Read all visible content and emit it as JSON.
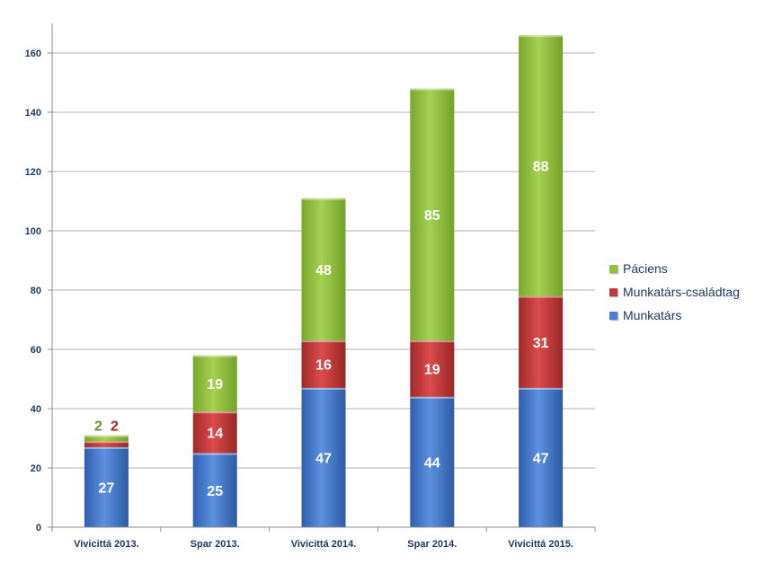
{
  "chart_data": {
    "type": "bar",
    "stacked": true,
    "categories": [
      "Vivicittá 2013.",
      "Spar 2013.",
      "Vivicittá 2014.",
      "Spar 2014.",
      "Vivicittá 2015."
    ],
    "series": [
      {
        "name": "Munkatárs",
        "color": "#4a7fd4",
        "values": [
          27,
          25,
          47,
          44,
          47
        ]
      },
      {
        "name": "Munkatárs-családtag",
        "color": "#c0393b",
        "values": [
          2,
          14,
          16,
          19,
          31
        ]
      },
      {
        "name": "Páciens",
        "color": "#92c23e",
        "values": [
          2,
          19,
          48,
          85,
          88
        ]
      }
    ],
    "ylim": [
      0,
      170
    ],
    "yticks": [
      0,
      20,
      40,
      60,
      80,
      100,
      120,
      140,
      160
    ],
    "grid": true,
    "legend_position": "right",
    "small_label_colors": [
      "#6a8f2a",
      "#b02020"
    ]
  }
}
